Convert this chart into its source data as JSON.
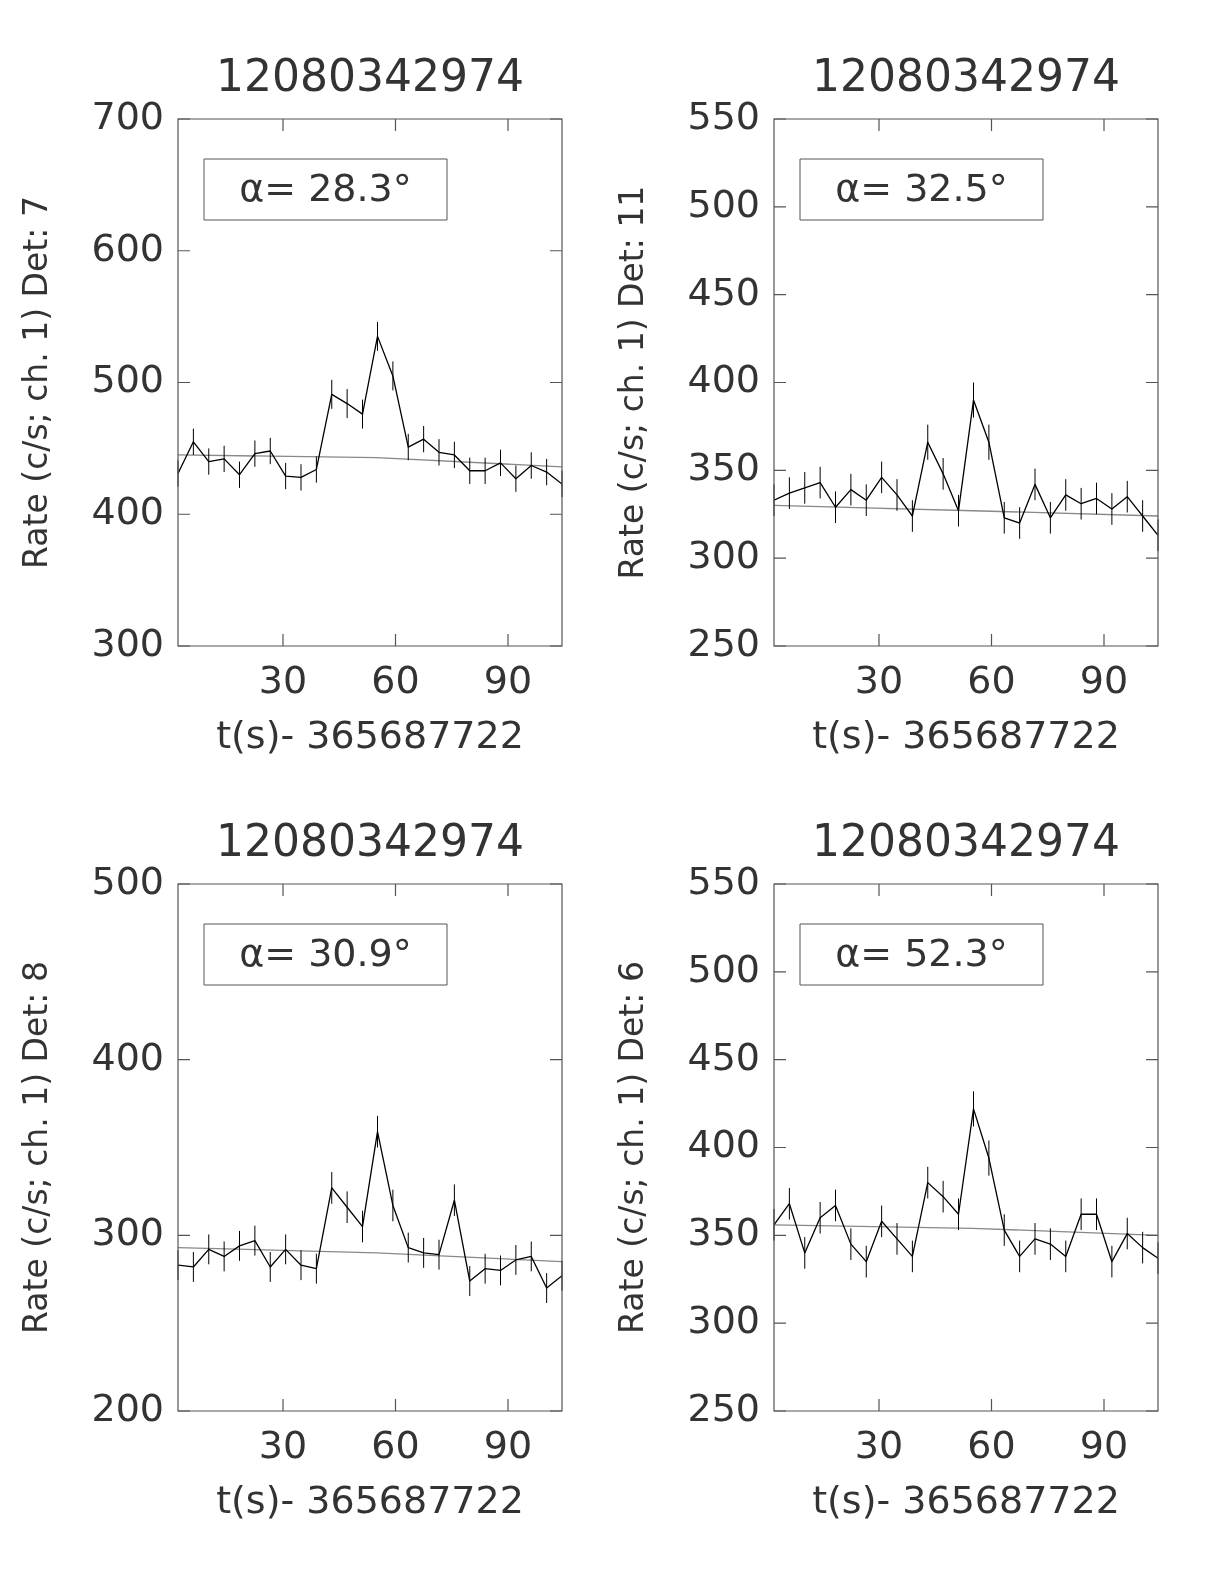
{
  "chart_data": [
    {
      "type": "line",
      "title": "12080342974",
      "xlabel": "t(s)- 365687722",
      "ylabel": "Rate (c/s; ch. 1) Det: 7",
      "annotations": [
        "α= 28.3°"
      ],
      "xlim": [
        2,
        104.4
      ],
      "xticks": [
        30,
        60,
        90
      ],
      "ylim": [
        300,
        700
      ],
      "yticks": [
        300,
        400,
        500,
        600,
        700
      ],
      "grid": false,
      "legend": false,
      "marker": "none",
      "line_style": "solid",
      "x": [
        2.0,
        6.1,
        10.2,
        14.3,
        18.4,
        22.5,
        26.6,
        30.7,
        34.8,
        38.9,
        43.0,
        47.1,
        51.2,
        55.2,
        59.3,
        63.4,
        67.5,
        71.6,
        75.7,
        79.8,
        83.9,
        88.0,
        92.1,
        96.2,
        100.3,
        104.4
      ],
      "series": [
        {
          "color": "#000000",
          "values": [
            431,
            455,
            440,
            442,
            430,
            446,
            448,
            429,
            428,
            434,
            491,
            484,
            476,
            535,
            505,
            451,
            457,
            447,
            445,
            433,
            433,
            439,
            427,
            437,
            432,
            423
          ],
          "errors": [
            10,
            10,
            10,
            10,
            10,
            10,
            10,
            10,
            10,
            10,
            11,
            11,
            11,
            11,
            11,
            10,
            10,
            10,
            10,
            10,
            10,
            10,
            10,
            10,
            10,
            10
          ]
        },
        {
          "type": "line",
          "color": "#888888",
          "x": [
            2,
            55,
            104.4
          ],
          "values": [
            445,
            443,
            436
          ]
        }
      ]
    },
    {
      "type": "line",
      "title": "12080342974",
      "xlabel": "t(s)- 365687722",
      "ylabel": "Rate (c/s; ch. 1) Det: 11",
      "annotations": [
        "α= 32.5°"
      ],
      "xlim": [
        2,
        104.4
      ],
      "xticks": [
        30,
        60,
        90
      ],
      "ylim": [
        250,
        550
      ],
      "yticks": [
        250,
        300,
        350,
        400,
        450,
        500,
        550
      ],
      "grid": false,
      "legend": false,
      "marker": "none",
      "line_style": "solid",
      "x": [
        2.0,
        6.1,
        10.2,
        14.3,
        18.4,
        22.5,
        26.6,
        30.7,
        34.8,
        38.9,
        43.0,
        47.1,
        51.2,
        55.2,
        59.3,
        63.4,
        67.5,
        71.6,
        75.7,
        79.8,
        83.9,
        88.0,
        92.1,
        96.2,
        100.3,
        104.4
      ],
      "series": [
        {
          "color": "#000000",
          "values": [
            333,
            337,
            340,
            343,
            329,
            339,
            333,
            346,
            336,
            324,
            366,
            348,
            327,
            390,
            366,
            323,
            320,
            342,
            323,
            336,
            331,
            334,
            328,
            335,
            324,
            313
          ],
          "errors": [
            9,
            9,
            9,
            9,
            9,
            9,
            9,
            9,
            9,
            9,
            10,
            9,
            9,
            10,
            10,
            9,
            9,
            9,
            9,
            9,
            9,
            9,
            9,
            9,
            9,
            9
          ]
        },
        {
          "type": "line",
          "color": "#888888",
          "x": [
            2,
            55,
            104.4
          ],
          "values": [
            330,
            327,
            324
          ]
        }
      ]
    },
    {
      "type": "line",
      "title": "12080342974",
      "xlabel": "t(s)- 365687722",
      "ylabel": "Rate (c/s; ch. 1) Det: 8",
      "annotations": [
        "α= 30.9°"
      ],
      "xlim": [
        2,
        104.4
      ],
      "xticks": [
        30,
        60,
        90
      ],
      "ylim": [
        200,
        500
      ],
      "yticks": [
        200,
        300,
        400,
        500
      ],
      "grid": false,
      "legend": false,
      "marker": "none",
      "line_style": "solid",
      "x": [
        2.0,
        6.1,
        10.2,
        14.3,
        18.4,
        22.5,
        26.6,
        30.7,
        34.8,
        38.9,
        43.0,
        47.1,
        51.2,
        55.2,
        59.3,
        63.4,
        67.5,
        71.6,
        75.7,
        79.8,
        83.9,
        88.0,
        92.1,
        96.2,
        100.3,
        104.4
      ],
      "series": [
        {
          "color": "#000000",
          "values": [
            283,
            282,
            292,
            288,
            294,
            297,
            282,
            292,
            283,
            281,
            327,
            316,
            305,
            359,
            317,
            293,
            290,
            289,
            320,
            274,
            281,
            280,
            286,
            288,
            270,
            277
          ],
          "errors": [
            8.5,
            8.5,
            8.5,
            8.5,
            8.5,
            8.5,
            8.5,
            8.5,
            8.5,
            8.5,
            9,
            9,
            9,
            9,
            9,
            8.5,
            8.5,
            8.5,
            9,
            8.5,
            8.5,
            8.5,
            8.5,
            8.5,
            8.5,
            8.5
          ]
        },
        {
          "type": "line",
          "color": "#888888",
          "x": [
            2,
            55,
            104.4
          ],
          "values": [
            293,
            290,
            285
          ]
        }
      ]
    },
    {
      "type": "line",
      "title": "12080342974",
      "xlabel": "t(s)- 365687722",
      "ylabel": "Rate (c/s; ch. 1) Det: 6",
      "annotations": [
        "α= 52.3°"
      ],
      "xlim": [
        2,
        104.4
      ],
      "xticks": [
        30,
        60,
        90
      ],
      "ylim": [
        250,
        550
      ],
      "yticks": [
        250,
        300,
        350,
        400,
        450,
        500,
        550
      ],
      "grid": false,
      "legend": false,
      "marker": "none",
      "line_style": "solid",
      "x": [
        2.0,
        6.1,
        10.2,
        14.3,
        18.4,
        22.5,
        26.6,
        30.7,
        34.8,
        38.9,
        43.0,
        47.1,
        51.2,
        55.2,
        59.3,
        63.4,
        67.5,
        71.6,
        75.7,
        79.8,
        83.9,
        88.0,
        92.1,
        96.2,
        100.3,
        104.4
      ],
      "series": [
        {
          "color": "#000000",
          "values": [
            356,
            368,
            340,
            360,
            367,
            345,
            335,
            358,
            348,
            338,
            380,
            372,
            362,
            422,
            394,
            353,
            338,
            348,
            345,
            338,
            362,
            362,
            335,
            351,
            343,
            337
          ],
          "errors": [
            9,
            9,
            9,
            9,
            9,
            9,
            9,
            9,
            9,
            9,
            9,
            9,
            9,
            10,
            10,
            9,
            9,
            9,
            9,
            9,
            9,
            9,
            9,
            9,
            9,
            9
          ]
        },
        {
          "type": "line",
          "color": "#888888",
          "x": [
            2,
            55,
            104.4
          ],
          "values": [
            356,
            354,
            350
          ]
        }
      ]
    }
  ]
}
